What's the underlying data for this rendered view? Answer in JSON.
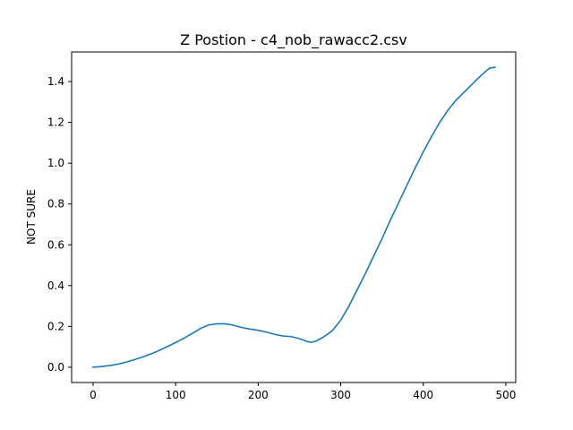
{
  "chart_data": {
    "type": "line",
    "title": "Z Postion - c4_nob_rawacc2.csv",
    "xlabel": "",
    "ylabel": "NOT SURE",
    "xlim": [
      -26,
      512
    ],
    "ylim": [
      -0.075,
      1.545
    ],
    "x_ticks": [
      0,
      100,
      200,
      300,
      400,
      500
    ],
    "x_tick_labels": [
      "0",
      "100",
      "200",
      "300",
      "400",
      "500"
    ],
    "y_ticks": [
      0.0,
      0.2,
      0.4,
      0.6,
      0.8,
      1.0,
      1.2,
      1.4
    ],
    "y_tick_labels": [
      "0.0",
      "0.2",
      "0.4",
      "0.6",
      "0.8",
      "1.0",
      "1.2",
      "1.4"
    ],
    "grid": false,
    "line_color": "#1f77b4",
    "series": [
      {
        "x": [
          0,
          10,
          20,
          30,
          40,
          50,
          60,
          70,
          80,
          90,
          100,
          110,
          120,
          130,
          140,
          150,
          160,
          170,
          180,
          190,
          200,
          210,
          220,
          230,
          240,
          250,
          260,
          265,
          270,
          280,
          290,
          300,
          310,
          320,
          330,
          340,
          350,
          360,
          370,
          380,
          390,
          400,
          410,
          420,
          430,
          440,
          450,
          460,
          470,
          480,
          487
        ],
        "y": [
          0.0,
          0.003,
          0.008,
          0.015,
          0.025,
          0.037,
          0.05,
          0.065,
          0.082,
          0.101,
          0.121,
          0.142,
          0.165,
          0.19,
          0.207,
          0.213,
          0.213,
          0.206,
          0.195,
          0.187,
          0.181,
          0.172,
          0.161,
          0.153,
          0.15,
          0.14,
          0.125,
          0.122,
          0.128,
          0.15,
          0.18,
          0.23,
          0.3,
          0.38,
          0.46,
          0.545,
          0.63,
          0.72,
          0.805,
          0.89,
          0.975,
          1.055,
          1.13,
          1.2,
          1.26,
          1.31,
          1.35,
          1.39,
          1.43,
          1.465,
          1.47
        ]
      }
    ]
  }
}
